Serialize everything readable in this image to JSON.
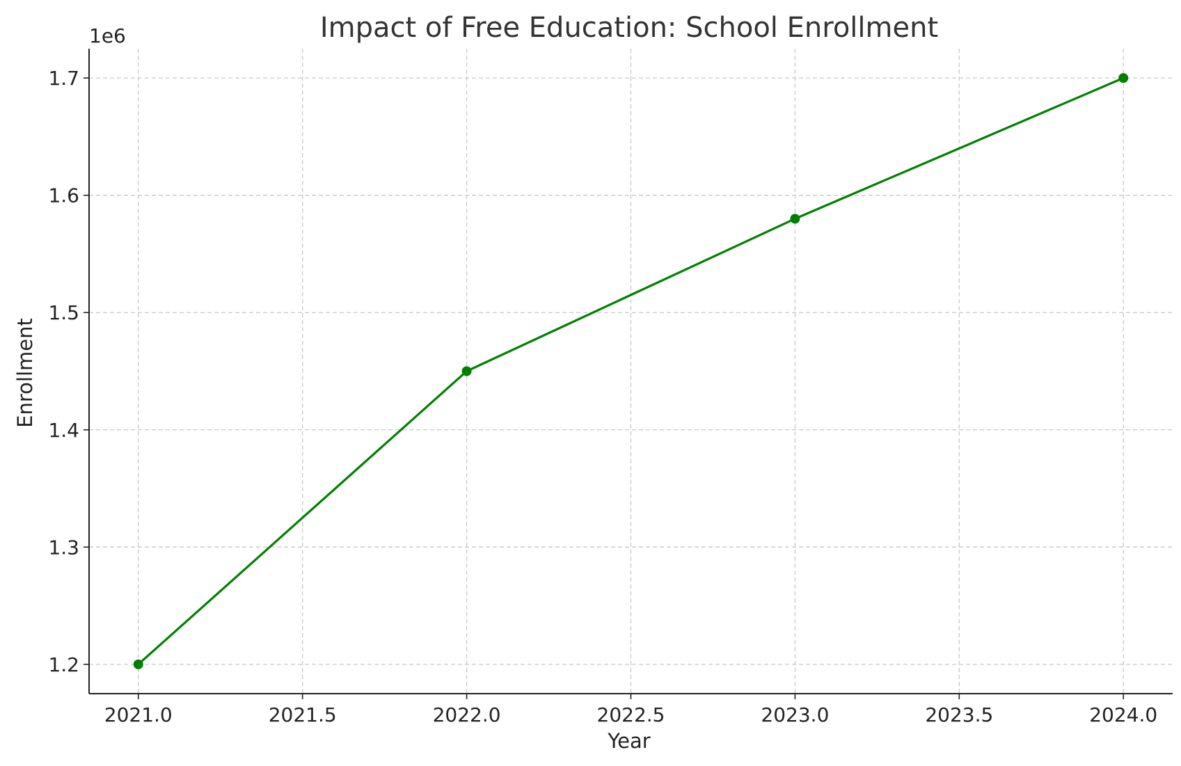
{
  "chart_data": {
    "type": "line",
    "title": "Impact of Free Education: School Enrollment",
    "xlabel": "Year",
    "ylabel": "Enrollment",
    "y_offset_label": "1e6",
    "xlim": [
      2020.85,
      2024.15
    ],
    "ylim": [
      1.175,
      1.725
    ],
    "x_ticks": [
      2021.0,
      2021.5,
      2022.0,
      2022.5,
      2023.0,
      2023.5,
      2024.0
    ],
    "x_tick_labels": [
      "2021.0",
      "2021.5",
      "2022.0",
      "2022.5",
      "2023.0",
      "2023.5",
      "2024.0"
    ],
    "y_ticks": [
      1.2,
      1.3,
      1.4,
      1.5,
      1.6,
      1.7
    ],
    "y_tick_labels": [
      "1.2",
      "1.3",
      "1.4",
      "1.5",
      "1.6",
      "1.7"
    ],
    "grid": true,
    "series": [
      {
        "color": "#008000",
        "marker": "circle",
        "x": [
          2021,
          2022,
          2023,
          2024
        ],
        "y": [
          1.2,
          1.45,
          1.58,
          1.7
        ]
      }
    ]
  }
}
